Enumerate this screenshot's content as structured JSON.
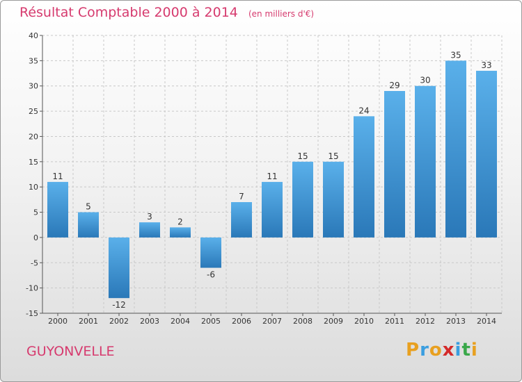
{
  "header": {
    "title": "Résultat Comptable 2000 à 2014",
    "subtitle": "(en milliers d'€)"
  },
  "footer": {
    "commune": "GUYONVELLE",
    "brand_letters": [
      "P",
      "r",
      "o",
      "x",
      "i",
      "t",
      "i"
    ],
    "brand_colors": [
      "#e8a020",
      "#3a9ee0",
      "#e8a020",
      "#d42a2a",
      "#3a9ee0",
      "#3aa84a",
      "#e8a020"
    ]
  },
  "colors": {
    "title": "#d63a6e",
    "bar_light": "#5ab0ea",
    "bar_dark": "#2a78b8",
    "grid": "#c8c8c8",
    "axis": "#555555"
  },
  "chart_data": {
    "type": "bar",
    "title": "Résultat Comptable 2000 à 2014",
    "subtitle": "(en milliers d'€)",
    "xlabel": "",
    "ylabel": "",
    "categories": [
      "2000",
      "2001",
      "2002",
      "2003",
      "2004",
      "2005",
      "2006",
      "2007",
      "2008",
      "2009",
      "2010",
      "2011",
      "2012",
      "2013",
      "2014"
    ],
    "values": [
      11,
      5,
      -12,
      3,
      2,
      -6,
      7,
      11,
      15,
      15,
      24,
      29,
      30,
      35,
      33
    ],
    "data_labels": [
      "11",
      "5",
      "-12",
      "3",
      "2",
      "-6",
      "7",
      "11",
      "15",
      "15",
      "24",
      "29",
      "30",
      "35",
      "33"
    ],
    "ylim": [
      -15,
      40
    ],
    "yticks": [
      -15,
      -10,
      -5,
      0,
      5,
      10,
      15,
      20,
      25,
      30,
      35,
      40
    ],
    "grid": true,
    "legend": "none"
  }
}
